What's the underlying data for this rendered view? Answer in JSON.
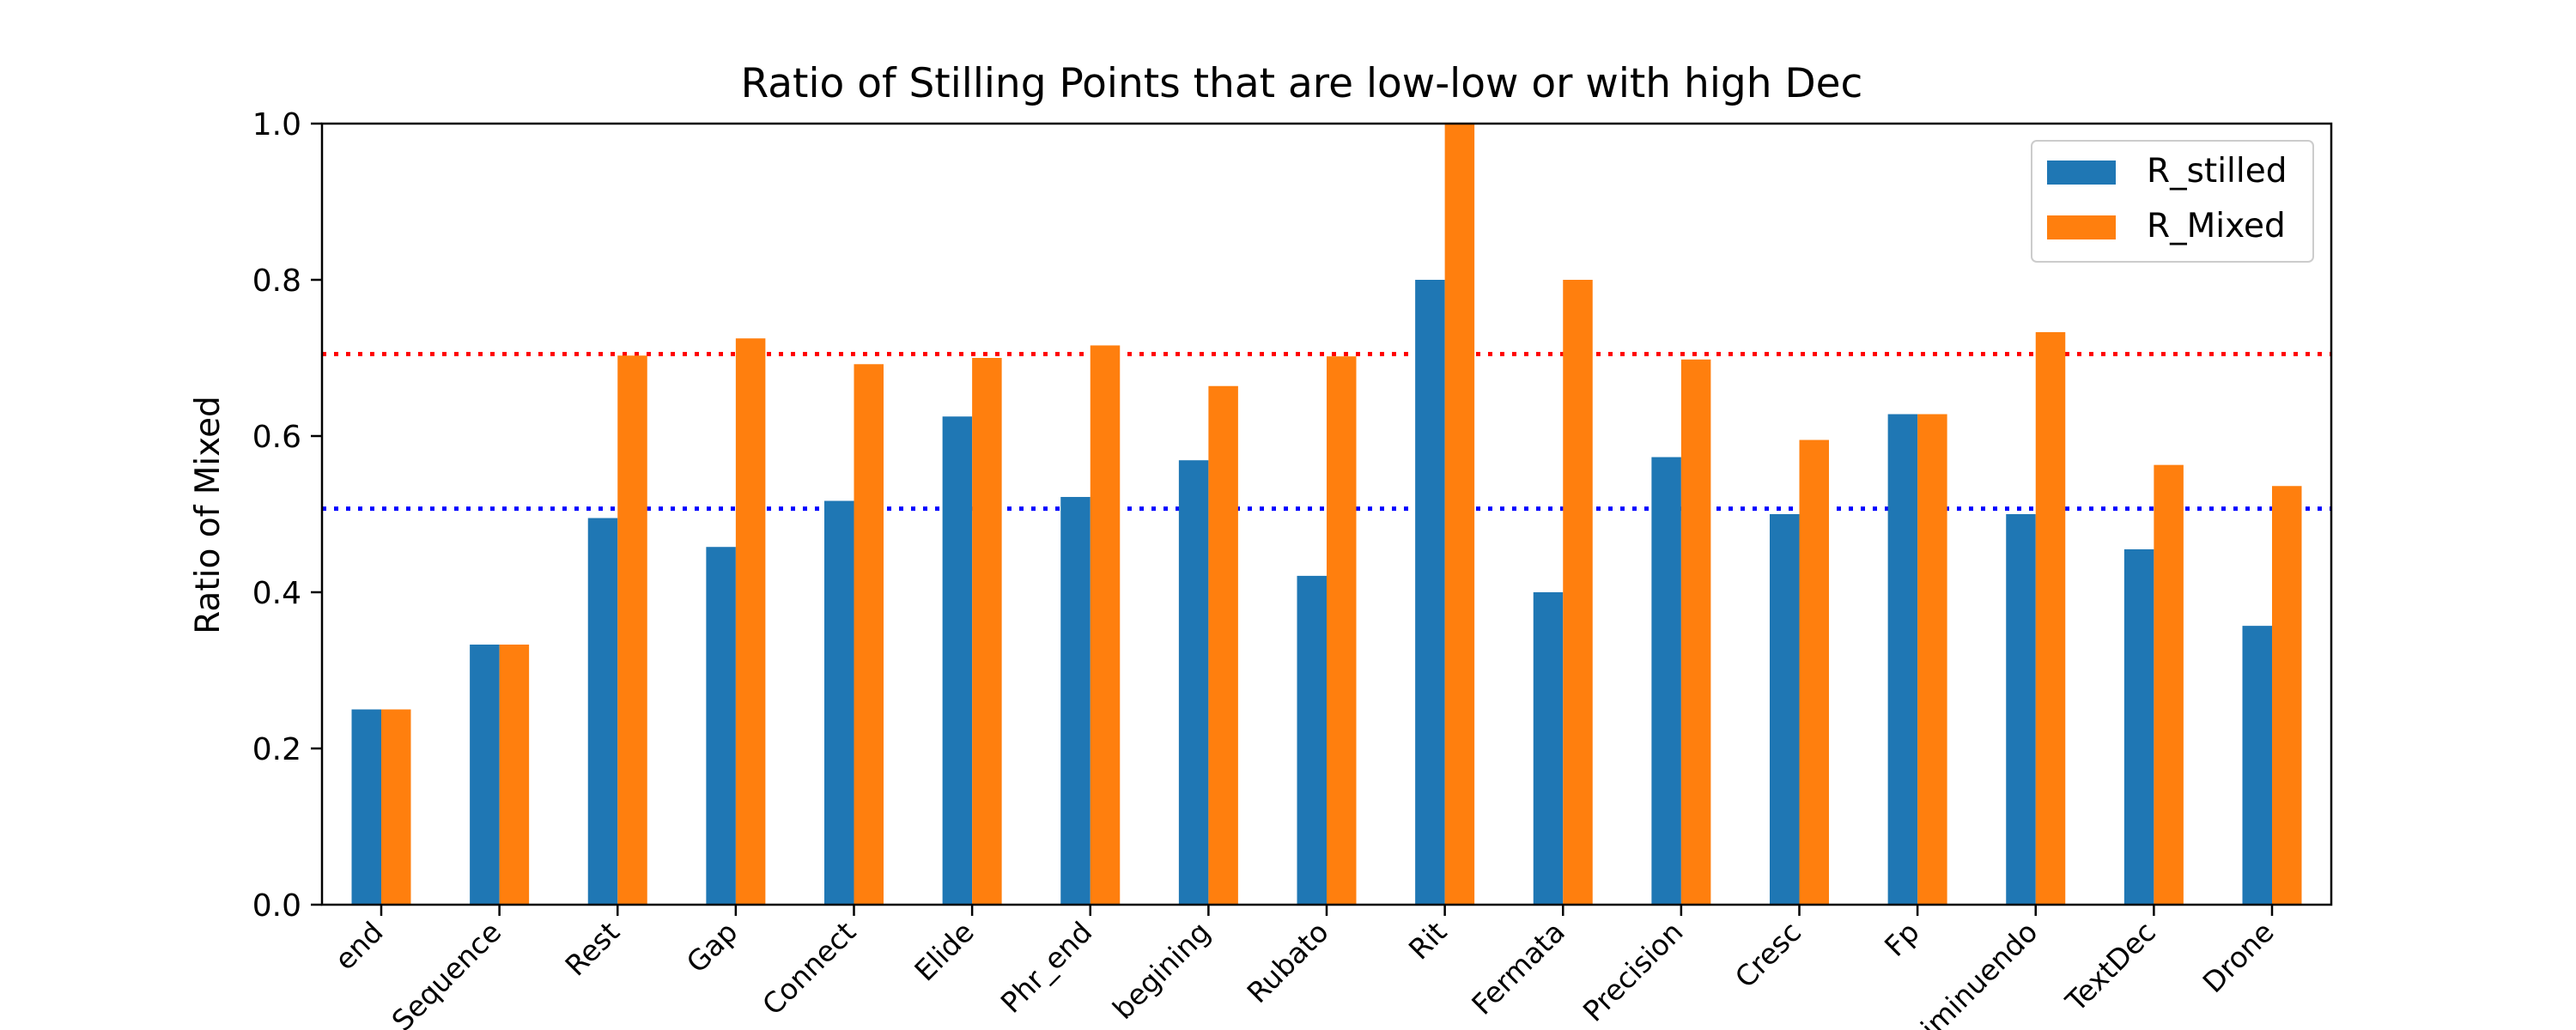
{
  "chart_data": {
    "type": "bar",
    "title": "Ratio of Stilling Points that are low-low or with high Dec",
    "xlabel": "",
    "ylabel": "Ratio of Mixed",
    "ylim": [
      0.0,
      1.0
    ],
    "yticks": [
      "0.0",
      "0.2",
      "0.4",
      "0.6",
      "0.8",
      "1.0"
    ],
    "categories": [
      "end",
      "Sequence",
      "Rest",
      "Gap",
      "Connect",
      "Elide",
      "Phr_end",
      "begining",
      "Rubato",
      "Rit",
      "Fermata",
      "Precision",
      "Cresc",
      "Fp",
      "Diminuendo",
      "TextDec",
      "Drone"
    ],
    "series": [
      {
        "name": "R_stilled",
        "color": "#1f77b4",
        "values": [
          0.25,
          0.333,
          0.495,
          0.458,
          0.517,
          0.625,
          0.522,
          0.569,
          0.421,
          0.8,
          0.4,
          0.573,
          0.5,
          0.628,
          0.5,
          0.455,
          0.357
        ]
      },
      {
        "name": "R_Mixed",
        "color": "#ff7f0e",
        "values": [
          0.25,
          0.333,
          0.703,
          0.725,
          0.692,
          0.7,
          0.716,
          0.664,
          0.702,
          1.0,
          0.8,
          0.698,
          0.595,
          0.628,
          0.733,
          0.563,
          0.536
        ]
      }
    ],
    "reference_lines": [
      {
        "value": 0.705,
        "color": "#ff0000",
        "style": "dotted"
      },
      {
        "value": 0.507,
        "color": "#0000ff",
        "style": "dotted"
      }
    ],
    "legend_position": "top-right",
    "grid": false
  }
}
